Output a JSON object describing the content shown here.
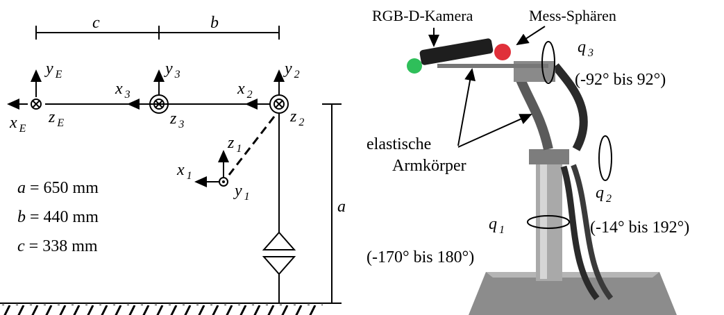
{
  "left_diagram": {
    "dimensions": {
      "c": "c",
      "b": "b",
      "a": "a"
    },
    "axis_labels": [
      {
        "base": "y",
        "sub": "E"
      },
      {
        "base": "x",
        "sub": "E"
      },
      {
        "base": "z",
        "sub": "E"
      },
      {
        "base": "y",
        "sub": "3"
      },
      {
        "base": "x",
        "sub": "3"
      },
      {
        "base": "z",
        "sub": "3"
      },
      {
        "base": "y",
        "sub": "2"
      },
      {
        "base": "x",
        "sub": "2"
      },
      {
        "base": "z",
        "sub": "2"
      },
      {
        "base": "z",
        "sub": "1"
      },
      {
        "base": "x",
        "sub": "1"
      },
      {
        "base": "y",
        "sub": "1"
      }
    ],
    "parameters": [
      {
        "symbol": "a",
        "value": "= 650 mm"
      },
      {
        "symbol": "b",
        "value": "= 440 mm"
      },
      {
        "symbol": "c",
        "value": "= 338 mm"
      }
    ]
  },
  "photo_labels": {
    "camera": "RGB-D-Kamera",
    "spheres": "Mess-Sphären",
    "elastic": [
      "elastische",
      "Armkörper"
    ],
    "joints": [
      {
        "base": "q",
        "sub": "3",
        "range": "(-92° bis 92°)"
      },
      {
        "base": "q",
        "sub": "2",
        "range": "(-14° bis 192°)"
      },
      {
        "base": "q",
        "sub": "1",
        "range": "(-170° bis 180°)"
      }
    ]
  }
}
